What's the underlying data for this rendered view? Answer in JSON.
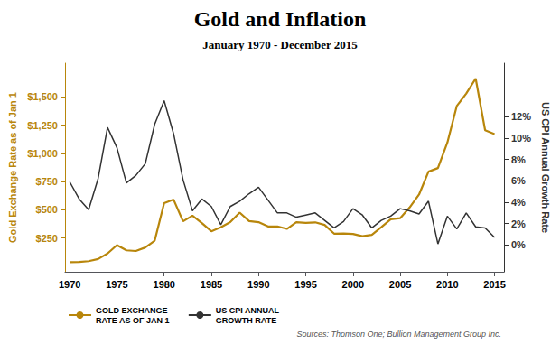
{
  "chart_data": {
    "type": "line",
    "title": "Gold and Inflation",
    "subtitle": "January 1970 - December 2015",
    "source": "Sources: Thomson One; Bullion Management Group Inc.",
    "ylabel": "Gold Exchange Rate as of Jan 1",
    "y2label": "US CPI Annual Growth Rate",
    "x": [
      1970,
      1971,
      1972,
      1973,
      1974,
      1975,
      1976,
      1977,
      1978,
      1979,
      1980,
      1981,
      1982,
      1983,
      1984,
      1985,
      1986,
      1987,
      1988,
      1989,
      1990,
      1991,
      1992,
      1993,
      1994,
      1995,
      1996,
      1997,
      1998,
      1999,
      2000,
      2001,
      2002,
      2003,
      2004,
      2005,
      2006,
      2007,
      2008,
      2009,
      2010,
      2011,
      2012,
      2013,
      2014,
      2015
    ],
    "xlim": [
      1969.5,
      2016
    ],
    "xticks": [
      1970,
      1975,
      1980,
      1985,
      1990,
      1995,
      2000,
      2005,
      2010,
      2015
    ],
    "ylim": [
      -50,
      1800
    ],
    "yticks": [
      {
        "value": 250,
        "label": "$250"
      },
      {
        "value": 500,
        "label": "$500"
      },
      {
        "value": 750,
        "label": "$750"
      },
      {
        "value": 1000,
        "label": "$1,000"
      },
      {
        "value": 1250,
        "label": "$1,250"
      },
      {
        "value": 1500,
        "label": "$1,500"
      }
    ],
    "y2lim": [
      -2.5,
      17
    ],
    "y2ticks": [
      {
        "value": 0,
        "label": "0%"
      },
      {
        "value": 2,
        "label": "2%"
      },
      {
        "value": 4,
        "label": "4%"
      },
      {
        "value": 6,
        "label": "6%"
      },
      {
        "value": 8,
        "label": "8%"
      },
      {
        "value": 10,
        "label": "10%"
      },
      {
        "value": 12,
        "label": "12%"
      }
    ],
    "series": [
      {
        "name": "GOLD EXCHANGE\nRATE AS OF JAN 1",
        "color": "#B8860B",
        "axis": "y",
        "values": [
          35,
          37,
          44,
          63,
          112,
          186,
          140,
          134,
          165,
          226,
          559,
          590,
          397,
          448,
          382,
          309,
          345,
          390,
          475,
          400,
          390,
          352,
          352,
          330,
          390,
          383,
          388,
          365,
          288,
          290,
          285,
          265,
          278,
          345,
          415,
          425,
          520,
          635,
          838,
          870,
          1096,
          1421,
          1531,
          1664,
          1205,
          1172
        ]
      },
      {
        "name": "US CPI ANNUAL\nGROWTH RATE",
        "color": "#333333",
        "axis": "y2",
        "values": [
          5.9,
          4.3,
          3.3,
          6.2,
          11.0,
          9.1,
          5.8,
          6.5,
          7.6,
          11.3,
          13.5,
          10.4,
          6.1,
          3.2,
          4.3,
          3.6,
          1.9,
          3.6,
          4.1,
          4.8,
          5.4,
          4.2,
          3.0,
          3.0,
          2.6,
          2.8,
          3.0,
          2.3,
          1.6,
          2.2,
          3.4,
          2.8,
          1.6,
          2.3,
          2.7,
          3.4,
          3.2,
          2.9,
          4.1,
          0.1,
          2.7,
          1.5,
          3.0,
          1.7,
          1.6,
          0.7
        ]
      }
    ],
    "grid": false,
    "legend": "bottom"
  }
}
